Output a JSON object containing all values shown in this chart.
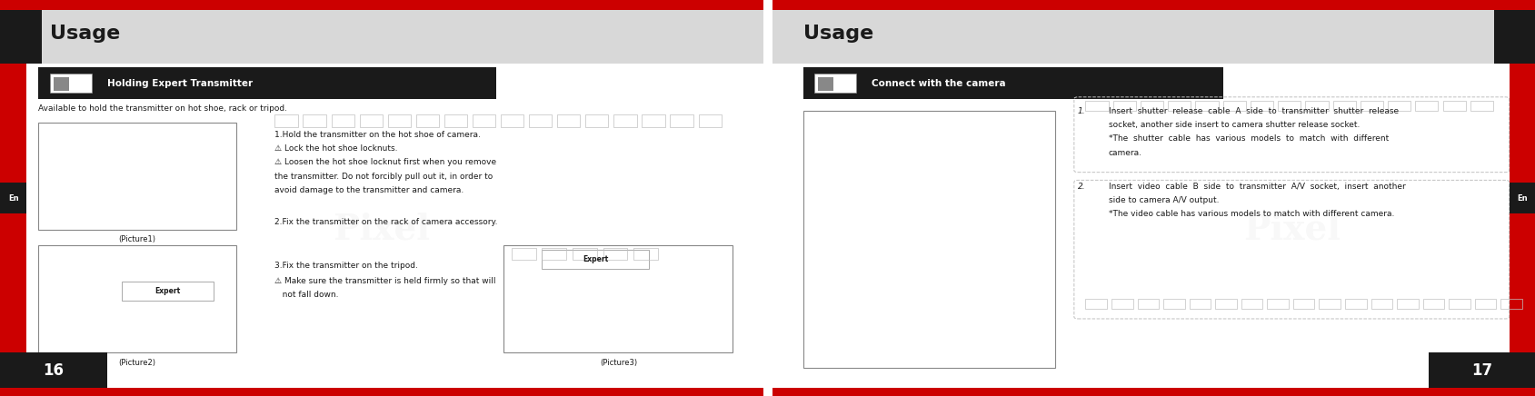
{
  "bg_color": "#ffffff",
  "page_bg": "#ffffff",
  "red_color": "#cc0000",
  "black": "#000000",
  "dark_gray": "#1a1a1a",
  "light_gray": "#d8d8d8",
  "mid_gray": "#aaaaaa",
  "header_bg": "#d8d8d8",
  "section_header_bg": "#1a1a1a",
  "section_header_text": "#ffffff",
  "page_number_bg": "#1a1a1a",
  "en_box_bg": "#1a1a1a",
  "divider_color": "#bbbbbb",
  "left_page": {
    "title": "Usage",
    "section_title": "Holding Expert Transmitter",
    "subtitle": "Available to hold the transmitter on hot shoe, rack or tripod.",
    "line1": "1.Hold the transmitter on the hot shoe of camera.",
    "line2": "⚠ Lock the hot shoe locknuts.",
    "line3": "⚠ Loosen the hot shoe locknut first when you remove",
    "line3b": "the transmitter. Do not forcibly pull out it, in order to",
    "line3c": "avoid damage to the transmitter and camera.",
    "line4": "2.Fix the transmitter on the rack of camera accessory.",
    "line5": "3.Fix the transmitter on the tripod.",
    "line6": "⚠ Make sure the transmitter is held firmly so that will",
    "line6b": "   not fall down.",
    "pic1_label": "(Picture1)",
    "pic2_label": "(Picture2)",
    "pic3_label": "(Picture3)",
    "page_num": "16",
    "en_label": "En"
  },
  "right_page": {
    "title": "Usage",
    "section_title": "Connect with the camera",
    "item1_num": "1.",
    "item1_line1": "Insert  shutter  release  cable  A  side  to  transmitter  shutter  release",
    "item1_line2": "socket, another side insert to camera shutter release socket.",
    "item1_line3": "*The  shutter  cable  has  various  models  to  match  with  different",
    "item1_line4": "camera.",
    "item2_num": "2.",
    "item2_line1": "Insert  video  cable  B  side  to  transmitter  A/V  socket,  insert  another",
    "item2_line2": "side to camera A/V output.",
    "item2_line3": "*The video cable has various models to match with different camera.",
    "page_num": "17",
    "en_label": "En"
  }
}
